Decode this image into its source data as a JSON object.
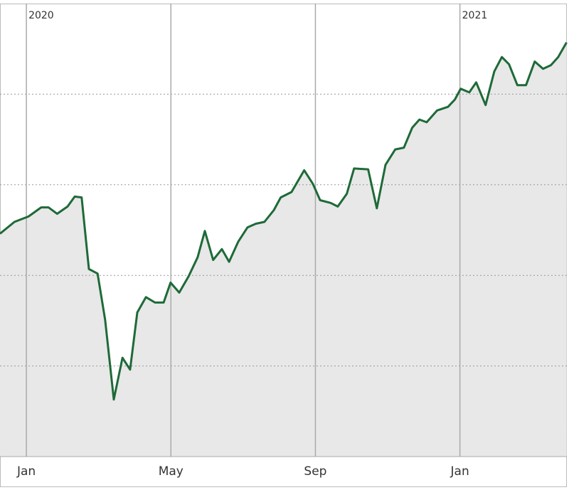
{
  "chart_data": {
    "type": "line",
    "area": true,
    "color": "#1e6a38",
    "fill_color": "#e8e8e8",
    "x": [
      -0.73,
      -0.33,
      0.06,
      0.41,
      0.61,
      0.85,
      1.14,
      1.34,
      1.53,
      1.73,
      1.97,
      2.18,
      2.42,
      2.66,
      2.87,
      3.07,
      3.31,
      3.56,
      3.8,
      3.99,
      4.23,
      4.49,
      4.74,
      4.94,
      5.17,
      5.41,
      5.61,
      5.86,
      6.12,
      6.35,
      6.59,
      6.85,
      7.04,
      7.34,
      7.69,
      7.93,
      8.13,
      8.42,
      8.62,
      8.87,
      9.07,
      9.46,
      9.7,
      9.94,
      10.21,
      10.45,
      10.68,
      10.88,
      11.08,
      11.37,
      11.67,
      11.86,
      12.02,
      12.26,
      12.45,
      12.71,
      12.95,
      13.16,
      13.36,
      13.59,
      13.83,
      14.07,
      14.3,
      14.52,
      14.72,
      14.95
    ],
    "values": [
      2.46,
      2.59,
      2.65,
      2.75,
      2.75,
      2.68,
      2.76,
      2.87,
      2.86,
      2.07,
      2.02,
      1.51,
      0.63,
      1.09,
      0.96,
      1.59,
      1.76,
      1.7,
      1.7,
      1.92,
      1.81,
      1.99,
      2.2,
      2.49,
      2.17,
      2.29,
      2.15,
      2.37,
      2.53,
      2.57,
      2.59,
      2.72,
      2.86,
      2.92,
      3.16,
      3.01,
      2.83,
      2.8,
      2.76,
      2.9,
      3.18,
      3.17,
      2.74,
      3.22,
      3.39,
      3.41,
      3.63,
      3.72,
      3.69,
      3.82,
      3.86,
      3.94,
      4.06,
      4.02,
      4.13,
      3.88,
      4.25,
      4.41,
      4.33,
      4.1,
      4.1,
      4.36,
      4.28,
      4.32,
      4.41,
      4.57
    ],
    "xlim": [
      -0.73,
      14.96
    ],
    "xticks": [
      {
        "value": 0,
        "label": "Jan"
      },
      {
        "value": 4,
        "label": "May"
      },
      {
        "value": 8,
        "label": "Sep"
      },
      {
        "value": 12,
        "label": "Jan"
      }
    ],
    "year_labels": [
      {
        "value": 0,
        "label": "2020"
      },
      {
        "value": 12,
        "label": "2021"
      }
    ],
    "ylim": [
      0,
      5
    ],
    "yticks": [
      1,
      2,
      3,
      4
    ],
    "grid": true
  }
}
